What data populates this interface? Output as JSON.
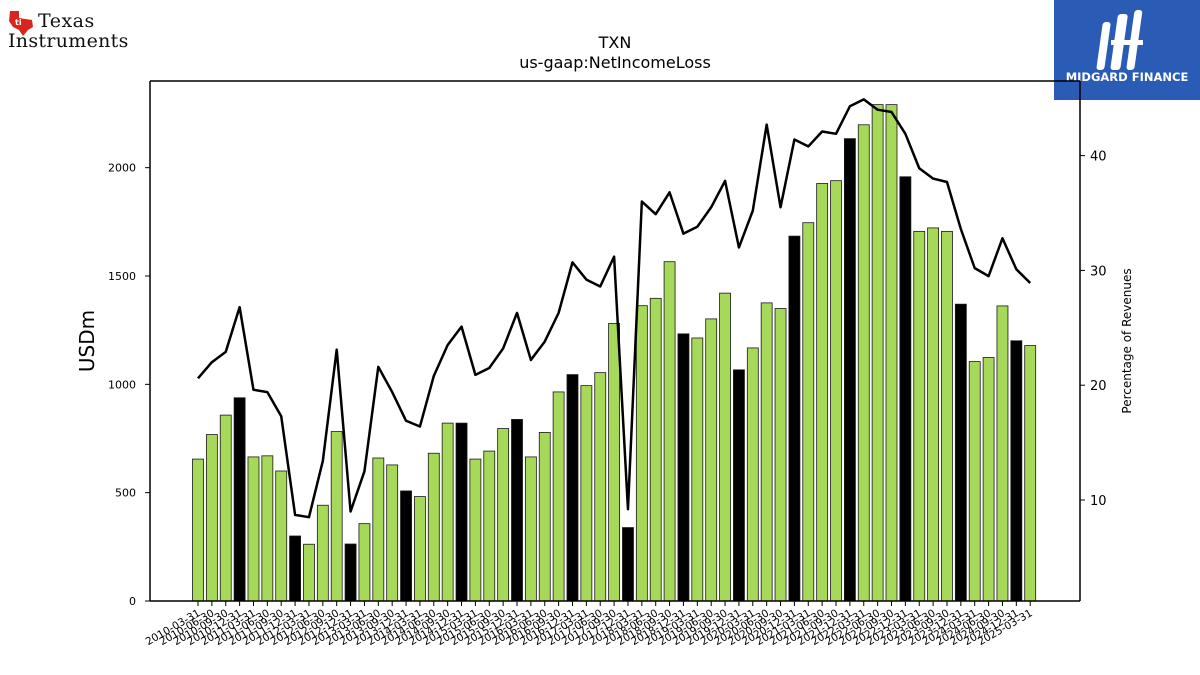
{
  "logos": {
    "left": {
      "line1": "Texas",
      "line2": "Instruments",
      "icon": "texas-state-icon"
    },
    "right": {
      "name": "MIDGARD FINANCE",
      "icon": "midgard-mark-icon",
      "color": "#2a5bb5"
    }
  },
  "chart_data": {
    "type": "bar",
    "title": "TXN",
    "subtitle": "us-gaap:NetIncomeLoss",
    "ylabel": "USDm",
    "y2label": "Percentage of Revenues",
    "ylim": [
      0,
      2400
    ],
    "y2lim": [
      1.2,
      46.5
    ],
    "yticks": [
      0,
      500,
      1000,
      1500,
      2000
    ],
    "y2ticks": [
      10,
      20,
      30,
      40
    ],
    "grid": false,
    "categories": [
      "2010-03-31",
      "2010-06-30",
      "2010-09-30",
      "2010-12-31",
      "2011-03-31",
      "2011-06-30",
      "2011-09-30",
      "2011-12-31",
      "2012-03-31",
      "2012-06-30",
      "2012-09-30",
      "2012-12-31",
      "2013-03-31",
      "2013-06-30",
      "2013-09-30",
      "2013-12-31",
      "2014-03-31",
      "2014-06-30",
      "2014-09-30",
      "2014-12-31",
      "2015-03-31",
      "2015-06-30",
      "2015-09-30",
      "2015-12-31",
      "2016-03-31",
      "2016-06-30",
      "2016-09-30",
      "2016-12-31",
      "2017-03-31",
      "2017-06-30",
      "2017-09-30",
      "2017-12-31",
      "2018-03-31",
      "2018-06-30",
      "2018-09-30",
      "2018-12-31",
      "2019-03-31",
      "2019-06-30",
      "2019-09-30",
      "2019-12-31",
      "2020-03-31",
      "2020-06-30",
      "2020-09-30",
      "2020-12-31",
      "2021-03-31",
      "2021-06-30",
      "2021-09-30",
      "2021-12-31",
      "2022-03-31",
      "2022-06-30",
      "2022-09-30",
      "2022-12-31",
      "2023-03-31",
      "2023-06-30",
      "2023-09-30",
      "2023-12-31",
      "2024-03-31",
      "2024-06-30",
      "2024-09-30",
      "2024-12-31",
      "2025-03-31"
    ],
    "series": [
      {
        "type": "bar",
        "values": [
          655,
          768,
          858,
          938,
          665,
          670,
          600,
          300,
          262,
          442,
          782,
          263,
          357,
          660,
          628,
          508,
          482,
          682,
          821,
          821,
          655,
          692,
          796,
          838,
          665,
          778,
          965,
          1045,
          994,
          1054,
          1281,
          339,
          1363,
          1397,
          1566,
          1233,
          1214,
          1302,
          1421,
          1067,
          1168,
          1376,
          1350,
          1684,
          1746,
          1927,
          1940,
          2134,
          2198,
          2291,
          2291,
          1958,
          1706,
          1722,
          1706,
          1370,
          1105,
          1124,
          1362,
          1201,
          1179
        ],
        "highlight": [
          3,
          7,
          11,
          15,
          19,
          23,
          27,
          31,
          35,
          39,
          43,
          47,
          51,
          55,
          59
        ],
        "colors": {
          "default": "#a6d85a",
          "highlight": "#000000",
          "edge": "#1a1a1a"
        }
      },
      {
        "type": "line",
        "axis": "right",
        "values": [
          20.6,
          22.0,
          22.9,
          26.8,
          19.6,
          19.4,
          17.3,
          8.7,
          8.5,
          13.4,
          23.1,
          9.0,
          12.5,
          21.6,
          19.4,
          16.9,
          16.4,
          20.8,
          23.5,
          25.1,
          20.9,
          21.5,
          23.2,
          26.3,
          22.2,
          23.8,
          26.3,
          30.7,
          29.2,
          28.6,
          31.2,
          9.2,
          36.0,
          34.9,
          36.8,
          33.2,
          33.8,
          35.5,
          37.8,
          32.0,
          35.2,
          42.7,
          35.5,
          41.4,
          40.8,
          42.1,
          41.9,
          44.3,
          44.9,
          44.0,
          43.8,
          41.9,
          38.9,
          38.0,
          37.7,
          33.6,
          30.2,
          29.5,
          32.8,
          30.1,
          28.9
        ],
        "color": "#000000"
      }
    ]
  }
}
